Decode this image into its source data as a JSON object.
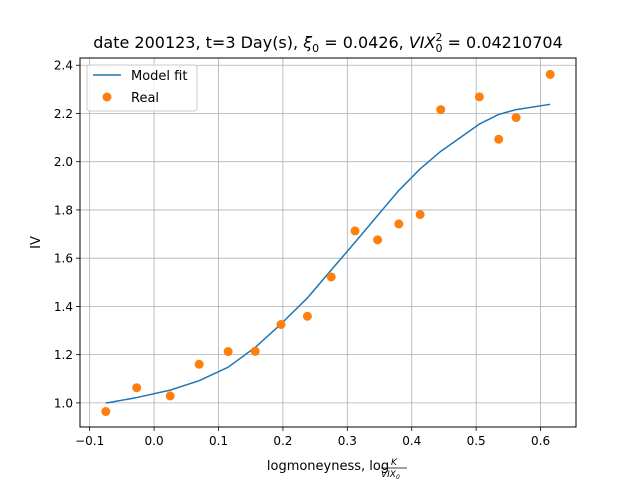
{
  "chart_data": {
    "type": "line",
    "title": {
      "prefix": "date 200123, t=3 Day(s), ",
      "xi_label": "ξ",
      "xi_sub": "0",
      "xi_value": " = 0.0426, ",
      "vix_label": "VIX",
      "vix_sup": "2",
      "vix_sub": "0",
      "vix_value": " = 0.04210704"
    },
    "xlabel": {
      "text": "logmoneyness, ",
      "log": "log",
      "frac_num": "K",
      "frac_den": "VIX",
      "frac_den_sub": "0"
    },
    "ylabel": "IV",
    "xlim": [
      -0.115,
      0.655
    ],
    "ylim": [
      0.9,
      2.43
    ],
    "xticks": [
      -0.1,
      0.0,
      0.1,
      0.2,
      0.3,
      0.4,
      0.5,
      0.6
    ],
    "xtick_labels": [
      "−0.1",
      "0.0",
      "0.1",
      "0.2",
      "0.3",
      "0.4",
      "0.5",
      "0.6"
    ],
    "yticks": [
      1.0,
      1.2,
      1.4,
      1.6,
      1.8,
      2.0,
      2.2,
      2.4
    ],
    "ytick_labels": [
      "1.0",
      "1.2",
      "1.4",
      "1.6",
      "1.8",
      "2.0",
      "2.2",
      "2.4"
    ],
    "grid": true,
    "legend_position": "top-left",
    "series": [
      {
        "name": "Model fit",
        "kind": "line",
        "color": "#1f77b4",
        "x": [
          -0.075,
          -0.027,
          0.025,
          0.07,
          0.115,
          0.157,
          0.197,
          0.238,
          0.275,
          0.312,
          0.347,
          0.38,
          0.413,
          0.445,
          0.505,
          0.535,
          0.562,
          0.615
        ],
        "y": [
          0.999,
          1.022,
          1.053,
          1.092,
          1.148,
          1.23,
          1.327,
          1.435,
          1.551,
          1.666,
          1.777,
          1.881,
          1.97,
          2.043,
          2.156,
          2.196,
          2.216,
          2.238
        ]
      },
      {
        "name": "Real",
        "kind": "scatter",
        "color": "#ff7f0e",
        "x": [
          -0.075,
          -0.027,
          0.025,
          0.07,
          0.115,
          0.157,
          0.197,
          0.238,
          0.275,
          0.312,
          0.347,
          0.38,
          0.413,
          0.445,
          0.505,
          0.535,
          0.562,
          0.615
        ],
        "y": [
          0.964,
          1.063,
          1.029,
          1.16,
          1.213,
          1.214,
          1.325,
          1.359,
          1.522,
          1.713,
          1.676,
          1.742,
          1.781,
          2.216,
          2.269,
          2.093,
          2.183,
          2.362
        ]
      }
    ]
  }
}
